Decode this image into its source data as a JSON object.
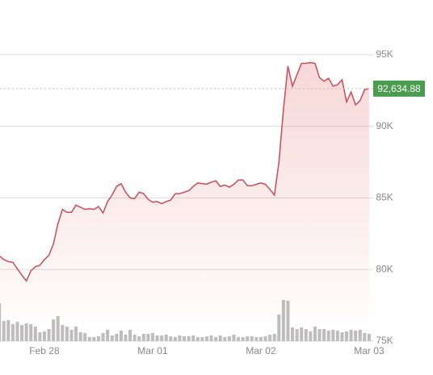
{
  "chart_data": {
    "type": "line",
    "x": [
      14,
      15,
      16,
      17,
      18,
      19,
      20,
      21,
      22,
      23,
      24,
      25,
      26,
      27,
      28,
      29,
      30,
      31,
      32,
      33,
      34,
      35,
      36,
      37,
      38,
      39,
      40,
      41,
      42,
      43,
      44,
      45,
      46,
      47,
      48,
      49,
      50,
      51,
      52,
      53,
      54,
      55,
      56,
      57,
      58,
      59,
      60,
      61,
      62,
      63,
      64,
      65,
      66,
      67,
      68,
      69,
      70,
      71,
      72,
      73,
      74,
      75,
      76,
      77,
      78,
      79,
      80,
      81,
      82,
      83,
      84,
      85,
      86,
      87,
      88,
      89,
      90,
      91,
      92,
      93,
      94,
      95,
      96
    ],
    "series": [
      {
        "color": "#cc4b55",
        "values": [
          80950,
          80700,
          80550,
          80500,
          80050,
          79600,
          79200,
          79900,
          80200,
          80300,
          80700,
          81000,
          81800,
          83200,
          84200,
          84000,
          84000,
          84500,
          84350,
          84200,
          84250,
          84200,
          84400,
          83950,
          84750,
          85200,
          85800,
          86000,
          85400,
          85000,
          84950,
          85400,
          85300,
          84900,
          84700,
          84750,
          84600,
          84750,
          84850,
          85300,
          85300,
          85400,
          85500,
          85800,
          86050,
          86000,
          85970,
          86100,
          86200,
          85800,
          85900,
          85750,
          85950,
          86250,
          86250,
          85850,
          85850,
          85950,
          86050,
          85950,
          85600,
          85200,
          87500,
          91200,
          94200,
          92800,
          93600,
          94400,
          94400,
          94450,
          94400,
          93400,
          93150,
          93350,
          92800,
          92900,
          93250,
          91700,
          92400,
          91500,
          91800,
          92550,
          92634.88
        ]
      },
      {
        "type": "volume",
        "color": "#bdbdbd",
        "values": [
          47,
          25,
          26,
          21,
          24,
          20,
          22,
          21,
          18,
          11,
          12,
          15,
          27,
          31,
          20,
          18,
          14,
          18,
          11,
          10,
          5,
          5,
          6,
          10,
          14,
          7,
          9,
          13,
          8,
          14,
          8,
          6,
          9,
          9,
          10,
          7,
          7,
          8,
          6,
          5,
          7,
          6,
          6,
          7,
          5,
          5,
          6,
          7,
          5,
          7,
          5,
          6,
          8,
          5,
          5,
          6,
          6,
          5,
          5,
          6,
          8,
          9,
          33,
          51,
          50,
          17,
          15,
          17,
          15,
          12,
          18,
          15,
          15,
          13,
          14,
          13,
          11,
          12,
          14,
          13,
          14,
          10,
          9
        ]
      }
    ],
    "xlim": [
      14.15,
      96.55
    ],
    "xticks": [
      {
        "value": 24,
        "label": "Feb 28"
      },
      {
        "value": 48,
        "label": "Mar 01"
      },
      {
        "value": 72,
        "label": "Mar 02"
      },
      {
        "value": 96,
        "label": "Mar 03"
      }
    ],
    "ylim": [
      75000,
      98820
    ],
    "yticks": [
      {
        "value": 75000,
        "label": "75K"
      },
      {
        "value": 80000,
        "label": "80K"
      },
      {
        "value": 85000,
        "label": "85K"
      },
      {
        "value": 90000,
        "label": "90K"
      },
      {
        "value": 95000,
        "label": "95K"
      }
    ],
    "grid": true,
    "last_price": {
      "value": 92634.88,
      "label": "92,634.88",
      "color": "#4a9d4f"
    }
  }
}
